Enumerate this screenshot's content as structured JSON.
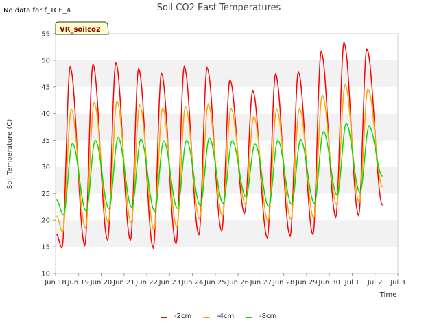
{
  "no_data_note": "No data for f_TCE_4",
  "site_label": "VR_soilco2",
  "chart_data": {
    "type": "line",
    "title": "Soil CO2 East Temperatures",
    "xlabel": "Time",
    "ylabel": "Soil Temperature (C)",
    "xlim": [
      "2024-06-18T00:00",
      "2024-07-03T00:00"
    ],
    "ylim": [
      10,
      55
    ],
    "y_ticks": [
      10,
      15,
      20,
      25,
      30,
      35,
      40,
      45,
      50,
      55
    ],
    "x_tick_labels": [
      "Jun 18",
      "Jun 19",
      "Jun 20",
      "Jun 21",
      "Jun 22",
      "Jun 23",
      "Jun 24",
      "Jun 25",
      "Jun 26",
      "Jun 27",
      "Jun 28",
      "Jun 29",
      "Jun 30",
      "Jul 1",
      "Jul 2",
      "Jul 3"
    ],
    "grid": "horizontal bands",
    "legend_position": "bottom",
    "series": [
      {
        "name": "-2cm",
        "color": "#ff0000",
        "daily_min": [
          14.8,
          15.3,
          16.3,
          16.3,
          14.8,
          15.6,
          17.3,
          18.0,
          21.3,
          16.7,
          17.0,
          17.3,
          20.6,
          20.9
        ],
        "daily_max": [
          48.7,
          49.2,
          49.5,
          48.4,
          47.5,
          48.8,
          48.6,
          46.3,
          44.3,
          47.4,
          47.8,
          51.6,
          53.3,
          52.1
        ],
        "start": 17.3,
        "end": 22.8
      },
      {
        "name": "-4cm",
        "color": "#ffa500",
        "daily_min": [
          17.8,
          18.5,
          19.5,
          19.5,
          18.2,
          18.8,
          20.2,
          20.8,
          23.0,
          19.8,
          20.2,
          20.4,
          23.0,
          23.3
        ],
        "daily_max": [
          40.8,
          42.0,
          42.3,
          41.6,
          41.0,
          41.3,
          41.7,
          40.9,
          39.4,
          40.8,
          40.9,
          43.4,
          45.4,
          44.6
        ],
        "start": 20.8,
        "end": 26.2
      },
      {
        "name": "-8cm",
        "color": "#00e000",
        "daily_min": [
          21.0,
          21.7,
          22.2,
          22.4,
          21.7,
          22.2,
          22.8,
          23.2,
          24.4,
          22.6,
          23.0,
          23.2,
          24.7,
          25.2
        ],
        "daily_max": [
          34.4,
          35.0,
          35.5,
          35.2,
          34.9,
          35.0,
          35.4,
          34.9,
          34.3,
          35.0,
          35.1,
          36.6,
          38.1,
          37.6
        ],
        "start": 23.8,
        "end": 28.2
      }
    ]
  }
}
